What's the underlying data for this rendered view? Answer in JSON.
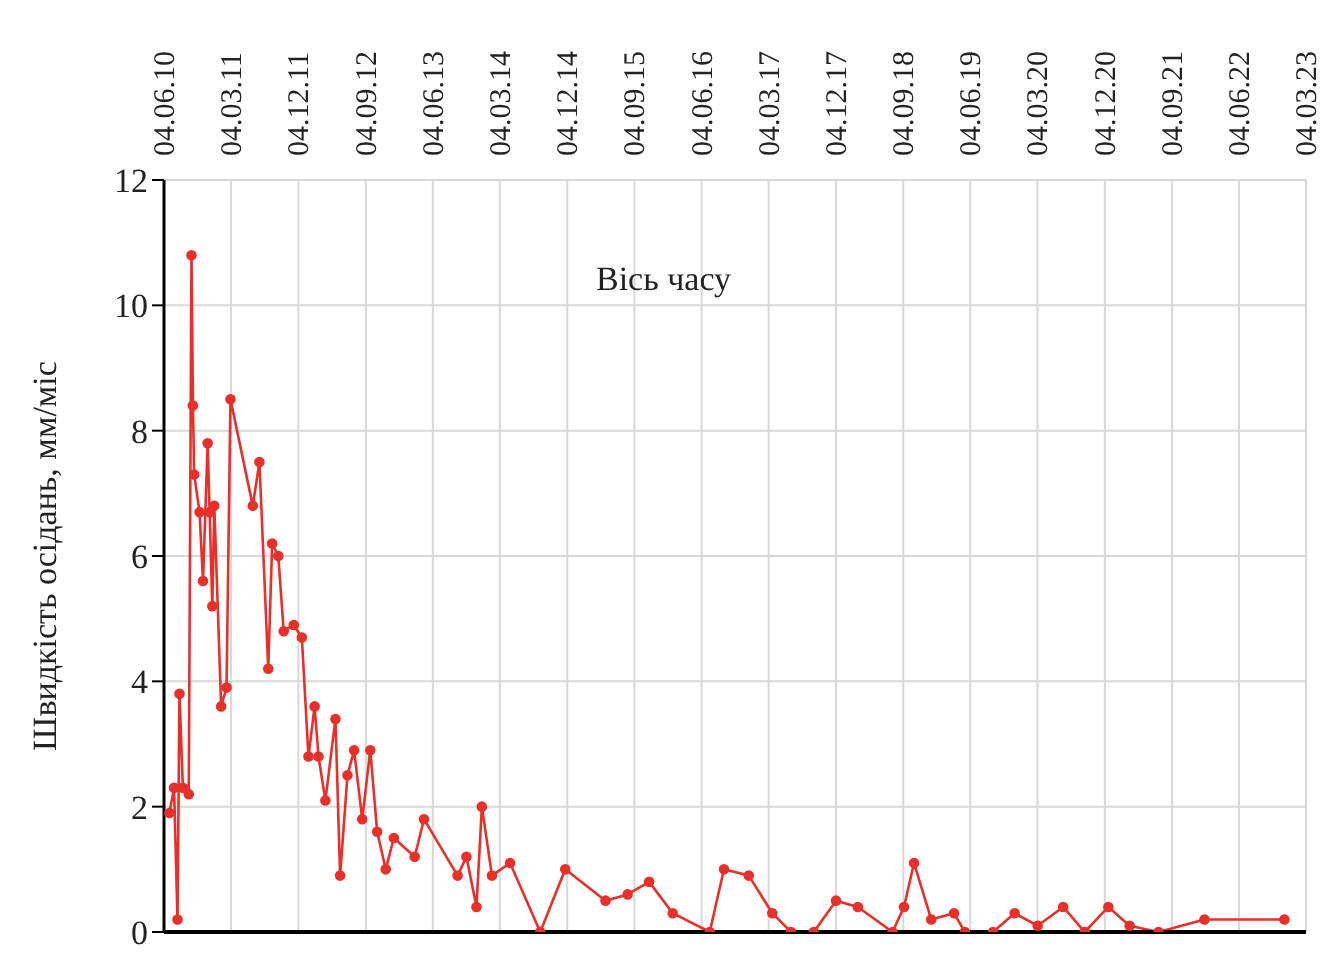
{
  "chart_data": {
    "type": "line",
    "ylabel": "Швидкість осідань, мм/міс",
    "annotations": [
      "Вісь часу"
    ],
    "x": [
      "2010-06-26",
      "2010-07-15",
      "2010-07-29",
      "2010-08-06",
      "2010-08-20",
      "2010-09-13",
      "2010-09-24",
      "2010-09-30",
      "2010-10-05",
      "2010-10-27",
      "2010-11-10",
      "2010-11-29",
      "2010-12-07",
      "2010-12-18",
      "2010-12-26",
      "2011-01-23",
      "2011-02-14",
      "2011-03-02",
      "2011-06-01",
      "2011-06-28",
      "2011-08-03",
      "2011-08-19",
      "2011-09-13",
      "2011-10-05",
      "2011-11-15",
      "2011-12-18",
      "2012-01-14",
      "2012-02-08",
      "2012-02-24",
      "2012-03-23",
      "2012-05-03",
      "2012-05-22",
      "2012-06-21",
      "2012-07-18",
      "2012-08-20",
      "2012-09-22",
      "2012-10-20",
      "2012-11-24",
      "2012-12-27",
      "2013-03-22",
      "2013-04-29",
      "2013-09-13",
      "2013-10-19",
      "2013-11-29",
      "2013-12-21",
      "2014-01-31",
      "2014-04-15",
      "2014-08-16",
      "2014-11-26",
      "2015-05-09",
      "2015-08-07",
      "2015-11-03",
      "2016-02-07",
      "2016-07-07",
      "2016-09-03",
      "2016-12-13",
      "2017-03-19",
      "2017-06-03",
      "2017-09-04",
      "2017-12-04",
      "2018-03-03",
      "2018-07-22",
      "2018-09-07",
      "2018-10-18",
      "2018-12-27",
      "2019-03-30",
      "2019-05-13",
      "2019-09-05",
      "2019-12-02",
      "2020-03-05",
      "2020-06-17",
      "2020-09-13",
      "2020-12-18",
      "2021-03-15",
      "2021-07-11",
      "2022-01-14",
      "2022-12-06"
    ],
    "series": [
      {
        "color": "#e8302a",
        "values": [
          1.9,
          2.3,
          0.2,
          3.8,
          2.3,
          2.2,
          10.8,
          8.4,
          7.3,
          6.7,
          5.6,
          7.8,
          6.7,
          5.2,
          6.8,
          3.6,
          3.9,
          8.5,
          6.8,
          7.5,
          4.2,
          6.2,
          6.0,
          4.8,
          4.9,
          4.7,
          2.8,
          3.6,
          2.8,
          2.1,
          3.4,
          0.9,
          2.5,
          2.9,
          1.8,
          2.9,
          1.6,
          1.0,
          1.5,
          1.2,
          1.8,
          0.9,
          1.2,
          0.4,
          2.0,
          0.9,
          1.1,
          0.0,
          1.0,
          0.5,
          0.6,
          0.8,
          0.3,
          0.0,
          1.0,
          0.9,
          0.3,
          0.0,
          0.0,
          0.5,
          0.4,
          0.0,
          0.4,
          1.1,
          0.2,
          0.3,
          0.0,
          0.0,
          0.3,
          0.1,
          0.4,
          0.0,
          0.4,
          0.1,
          0.0,
          0.2,
          0.2
        ]
      }
    ],
    "xlim": [
      "2010-06-04",
      "2023-03-04"
    ],
    "xticks": [
      {
        "value": "2010-06-04",
        "label": "04.06.10"
      },
      {
        "value": "2011-03-04",
        "label": "04.03.11"
      },
      {
        "value": "2011-12-04",
        "label": "04.12.11"
      },
      {
        "value": "2012-09-04",
        "label": "04.09.12"
      },
      {
        "value": "2013-06-04",
        "label": "04.06.13"
      },
      {
        "value": "2014-03-04",
        "label": "04.03.14"
      },
      {
        "value": "2014-12-04",
        "label": "04.12.14"
      },
      {
        "value": "2015-09-04",
        "label": "04.09.15"
      },
      {
        "value": "2016-06-04",
        "label": "04.06.16"
      },
      {
        "value": "2017-03-04",
        "label": "04.03.17"
      },
      {
        "value": "2017-12-04",
        "label": "04.12.17"
      },
      {
        "value": "2018-09-04",
        "label": "04.09.18"
      },
      {
        "value": "2019-06-04",
        "label": "04.06.19"
      },
      {
        "value": "2020-03-04",
        "label": "04.03.20"
      },
      {
        "value": "2020-12-04",
        "label": "04.12.20"
      },
      {
        "value": "2021-09-04",
        "label": "04.09.21"
      },
      {
        "value": "2022-06-04",
        "label": "04.06.22"
      },
      {
        "value": "2023-03-04",
        "label": "04.03.23"
      }
    ],
    "ylim": [
      0,
      12
    ],
    "yticks": [
      0,
      2,
      4,
      6,
      8,
      10,
      12
    ],
    "grid": true,
    "marker": "circle",
    "line_style": "solid"
  }
}
